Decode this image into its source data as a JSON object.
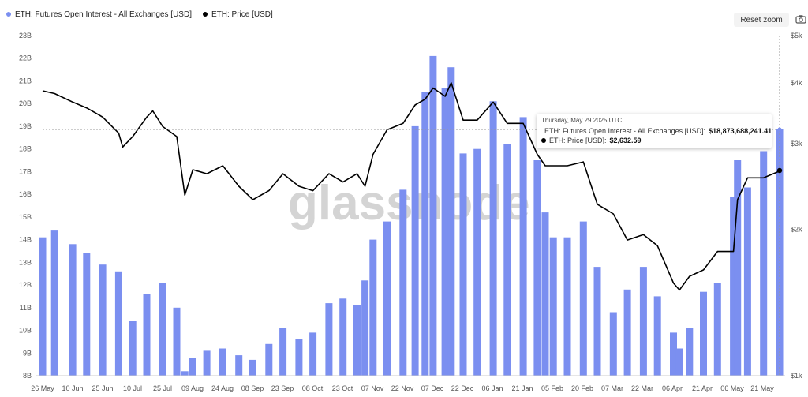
{
  "legend": {
    "oi_label": "ETH: Futures Open Interest - All Exchanges [USD]",
    "price_label": "ETH: Price [USD]"
  },
  "toolbar": {
    "reset_zoom_label": "Reset zoom",
    "camera_icon": "camera-icon"
  },
  "watermark": "glassnode",
  "tooltip": {
    "date": "Thursday, May 29 2025 UTC",
    "oi_label": "ETH: Futures Open Interest - All Exchanges [USD]:",
    "oi_value": "$18,873,688,241.41",
    "price_label": "ETH: Price [USD]:",
    "price_value": "$2,632.59"
  },
  "chart_data": {
    "type": "bar",
    "x_tick_labels": [
      "26 May",
      "10 Jun",
      "25 Jun",
      "10 Jul",
      "25 Jul",
      "09 Aug",
      "24 Aug",
      "08 Sep",
      "23 Sep",
      "08 Oct",
      "23 Oct",
      "07 Nov",
      "22 Nov",
      "07 Dec",
      "22 Dec",
      "06 Jan",
      "21 Jan",
      "05 Feb",
      "20 Feb",
      "07 Mar",
      "22 Mar",
      "06 Apr",
      "21 Apr",
      "06 May",
      "21 May"
    ],
    "y_left": {
      "label": "",
      "ticks": [
        "8B",
        "9B",
        "10B",
        "11B",
        "12B",
        "13B",
        "14B",
        "15B",
        "16B",
        "17B",
        "18B",
        "19B",
        "20B",
        "21B",
        "22B",
        "23B"
      ],
      "range": [
        8,
        23
      ],
      "unit": "B"
    },
    "y_right": {
      "label": "",
      "ticks": [
        "$1k",
        "$2k",
        "$3k",
        "$4k",
        "$5k"
      ],
      "range": [
        1000,
        5000
      ],
      "scale": "log"
    },
    "grid": false,
    "series": [
      {
        "name": "ETH: Futures Open Interest - All Exchanges [USD]",
        "kind": "bar",
        "color": "#7b8ff0",
        "x": [
          "2024-05-26",
          "2024-06-01",
          "2024-06-10",
          "2024-06-17",
          "2024-06-25",
          "2024-07-03",
          "2024-07-10",
          "2024-07-17",
          "2024-07-25",
          "2024-08-01",
          "2024-08-05",
          "2024-08-09",
          "2024-08-16",
          "2024-08-24",
          "2024-09-01",
          "2024-09-08",
          "2024-09-16",
          "2024-09-23",
          "2024-10-01",
          "2024-10-08",
          "2024-10-16",
          "2024-10-23",
          "2024-10-30",
          "2024-11-03",
          "2024-11-07",
          "2024-11-14",
          "2024-11-22",
          "2024-11-28",
          "2024-12-03",
          "2024-12-07",
          "2024-12-13",
          "2024-12-16",
          "2024-12-22",
          "2024-12-29",
          "2025-01-06",
          "2025-01-13",
          "2025-01-21",
          "2025-01-28",
          "2025-02-01",
          "2025-02-05",
          "2025-02-12",
          "2025-02-20",
          "2025-02-27",
          "2025-03-07",
          "2025-03-14",
          "2025-03-22",
          "2025-03-29",
          "2025-04-06",
          "2025-04-09",
          "2025-04-14",
          "2025-04-21",
          "2025-04-28",
          "2025-05-06",
          "2025-05-08",
          "2025-05-13",
          "2025-05-21",
          "2025-05-29"
        ],
        "values": [
          14.1,
          14.4,
          13.8,
          13.4,
          12.9,
          12.6,
          10.4,
          11.6,
          12.1,
          11.0,
          8.2,
          8.8,
          9.1,
          9.2,
          8.9,
          8.7,
          9.4,
          10.1,
          9.6,
          9.9,
          11.2,
          11.4,
          11.1,
          12.2,
          14.0,
          14.8,
          16.2,
          19.0,
          20.5,
          22.1,
          20.7,
          21.6,
          17.8,
          18.0,
          20.1,
          18.2,
          19.4,
          17.5,
          15.2,
          14.1,
          14.1,
          14.8,
          12.8,
          10.8,
          11.8,
          12.8,
          11.5,
          9.9,
          9.2,
          10.1,
          11.7,
          12.1,
          15.9,
          17.5,
          16.3,
          17.9,
          18.87
        ]
      },
      {
        "name": "ETH: Price [USD]",
        "kind": "line",
        "color": "#000000",
        "x": [
          "2024-05-26",
          "2024-06-01",
          "2024-06-10",
          "2024-06-17",
          "2024-06-25",
          "2024-07-03",
          "2024-07-05",
          "2024-07-10",
          "2024-07-17",
          "2024-07-20",
          "2024-07-25",
          "2024-08-01",
          "2024-08-05",
          "2024-08-09",
          "2024-08-16",
          "2024-08-24",
          "2024-09-01",
          "2024-09-08",
          "2024-09-16",
          "2024-09-23",
          "2024-10-01",
          "2024-10-08",
          "2024-10-16",
          "2024-10-23",
          "2024-10-30",
          "2024-11-03",
          "2024-11-07",
          "2024-11-14",
          "2024-11-22",
          "2024-11-28",
          "2024-12-03",
          "2024-12-07",
          "2024-12-13",
          "2024-12-16",
          "2024-12-22",
          "2024-12-29",
          "2025-01-06",
          "2025-01-13",
          "2025-01-21",
          "2025-01-28",
          "2025-02-01",
          "2025-02-05",
          "2025-02-12",
          "2025-02-20",
          "2025-02-27",
          "2025-03-07",
          "2025-03-14",
          "2025-03-22",
          "2025-03-29",
          "2025-04-06",
          "2025-04-09",
          "2025-04-14",
          "2025-04-21",
          "2025-04-28",
          "2025-05-06",
          "2025-05-08",
          "2025-05-13",
          "2025-05-21",
          "2025-05-29"
        ],
        "values": [
          3850,
          3800,
          3650,
          3550,
          3400,
          3150,
          2950,
          3100,
          3400,
          3500,
          3250,
          3100,
          2350,
          2650,
          2600,
          2700,
          2450,
          2300,
          2400,
          2600,
          2450,
          2400,
          2600,
          2500,
          2600,
          2450,
          2850,
          3200,
          3300,
          3600,
          3700,
          3900,
          3750,
          4000,
          3350,
          3350,
          3650,
          3300,
          3300,
          2850,
          2700,
          2700,
          2700,
          2750,
          2250,
          2150,
          1900,
          1950,
          1850,
          1550,
          1500,
          1600,
          1650,
          1800,
          1800,
          2300,
          2550,
          2550,
          2632.59
        ]
      }
    ],
    "annotations": [
      "Thursday, May 29 2025 UTC"
    ]
  }
}
